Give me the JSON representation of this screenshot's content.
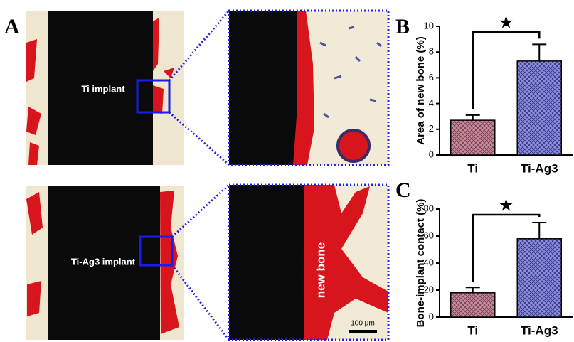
{
  "figure": {
    "panel_label": "A",
    "top_image_label": "Ti implant",
    "bottom_image_label": "Ti-Ag3 implant",
    "zoom_label": "new bone",
    "scale_bar": "100 μm"
  },
  "chart_data": [
    {
      "type": "bar",
      "panel": "B",
      "ylabel": "Area of new bone (%)",
      "categories": [
        "Ti",
        "Ti-Ag3"
      ],
      "values": [
        2.7,
        7.3
      ],
      "errors": [
        0.4,
        1.3
      ],
      "colors": [
        "#c98a9a",
        "#8c8ce0"
      ],
      "ylim": [
        0,
        10
      ],
      "yticks": [
        0,
        2,
        4,
        6,
        8,
        10
      ],
      "annotation": "★"
    },
    {
      "type": "bar",
      "panel": "C",
      "ylabel": "Bone-implant contact (%)",
      "categories": [
        "Ti",
        "Ti-Ag3"
      ],
      "values": [
        18,
        58
      ],
      "errors": [
        4,
        12
      ],
      "colors": [
        "#c98a9a",
        "#8c8ce0"
      ],
      "ylim": [
        0,
        80
      ],
      "yticks": [
        0,
        20,
        40,
        60,
        80
      ],
      "annotation": "★"
    }
  ]
}
